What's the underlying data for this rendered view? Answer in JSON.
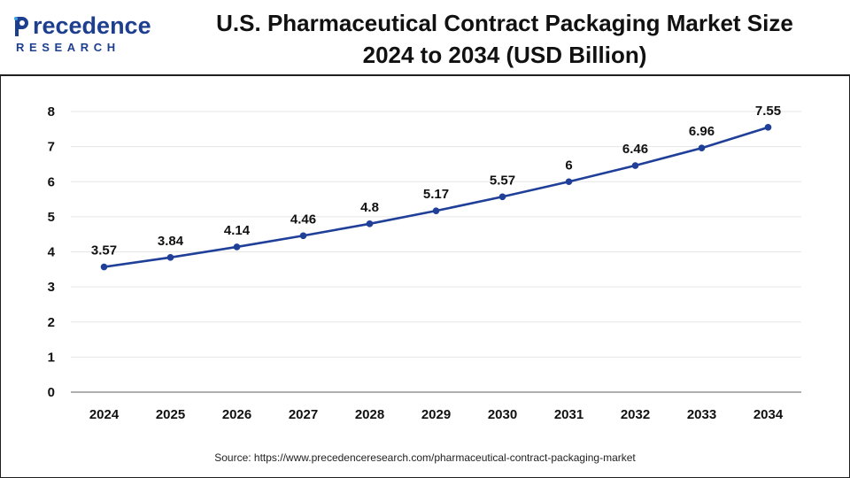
{
  "brand": {
    "name_main": "recedence",
    "name_sub": "RESEARCH"
  },
  "header": {
    "title_line1": "U.S. Pharmaceutical Contract Packaging Market Size",
    "title_line2": "2024 to 2034 (USD Billion)"
  },
  "source_text": "Source: https://www.precedenceresearch.com/pharmaceutical-contract-packaging-market",
  "colors": {
    "line": "#1f3f99",
    "marker": "#1f3f99",
    "grid": "#e6e6e6",
    "axis": "#7f7f7f",
    "brand": "#1e3f8f"
  },
  "chart_data": {
    "type": "line",
    "title": "U.S. Pharmaceutical Contract Packaging Market Size 2024 to 2034 (USD Billion)",
    "xlabel": "",
    "ylabel": "",
    "categories": [
      "2024",
      "2025",
      "2026",
      "2027",
      "2028",
      "2029",
      "2030",
      "2031",
      "2032",
      "2033",
      "2034"
    ],
    "series": [
      {
        "name": "Market Size (USD Billion)",
        "values": [
          3.57,
          3.84,
          4.14,
          4.46,
          4.8,
          5.17,
          5.57,
          6,
          6.46,
          6.96,
          7.55
        ],
        "labels": [
          "3.57",
          "3.84",
          "4.14",
          "4.46",
          "4.8",
          "5.17",
          "5.57",
          "6",
          "6.46",
          "6.96",
          "7.55"
        ]
      }
    ],
    "ylim": [
      0,
      8
    ],
    "yticks": [
      "0",
      "1",
      "2",
      "3",
      "4",
      "5",
      "6",
      "7",
      "8"
    ],
    "grid": true,
    "legend": "none"
  }
}
